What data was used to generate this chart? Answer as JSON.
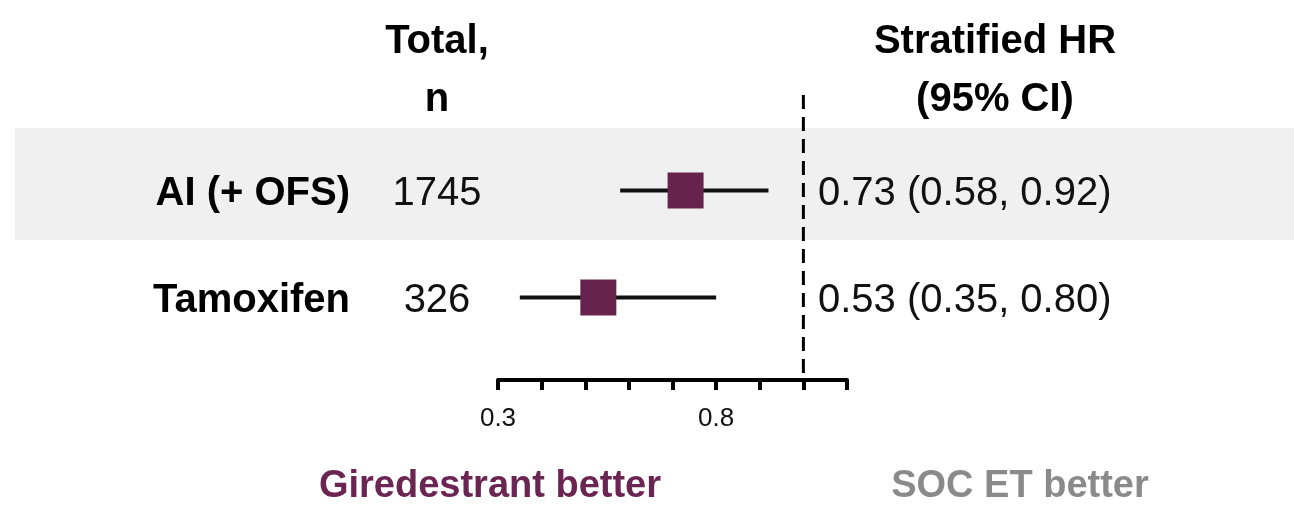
{
  "chart_data": {
    "type": "scatter",
    "orientation": "horizontal",
    "marker": "square",
    "color": "#66234d",
    "categories": [
      "AI (+ OFS)",
      "Tamoxifen"
    ],
    "values": [
      0.73,
      0.53
    ],
    "errors": [
      [
        0.58,
        0.92
      ],
      [
        0.35,
        0.8
      ]
    ],
    "value_labels": [
      "0.73 (0.58, 0.92)",
      "0.53 (0.35, 0.80)"
    ],
    "xlim": [
      0.3,
      1.1
    ],
    "xticks": [
      0.3,
      {
        "value": 0.4,
        "label": null
      },
      {
        "value": 0.5,
        "label": null
      },
      {
        "value": 0.6,
        "label": null
      },
      {
        "value": 0.7,
        "label": null
      },
      0.8,
      {
        "value": 0.9,
        "label": null
      },
      {
        "value": 1.0,
        "label": null
      },
      {
        "value": 1.1,
        "label": null
      }
    ],
    "ref_lines": [
      {
        "axis": "x",
        "value": 1.0,
        "line_style": "dashed"
      }
    ],
    "bands": [
      {
        "axis": "y",
        "from": "AI (+ OFS)",
        "to": "AI (+ OFS)",
        "color": "#f0f0f0"
      }
    ],
    "annotations": [
      "Total,\nn",
      "Stratified HR\n(95% CI)",
      "1745",
      "326",
      "Giredestrant better",
      "SOC ET better"
    ],
    "grid": false
  }
}
